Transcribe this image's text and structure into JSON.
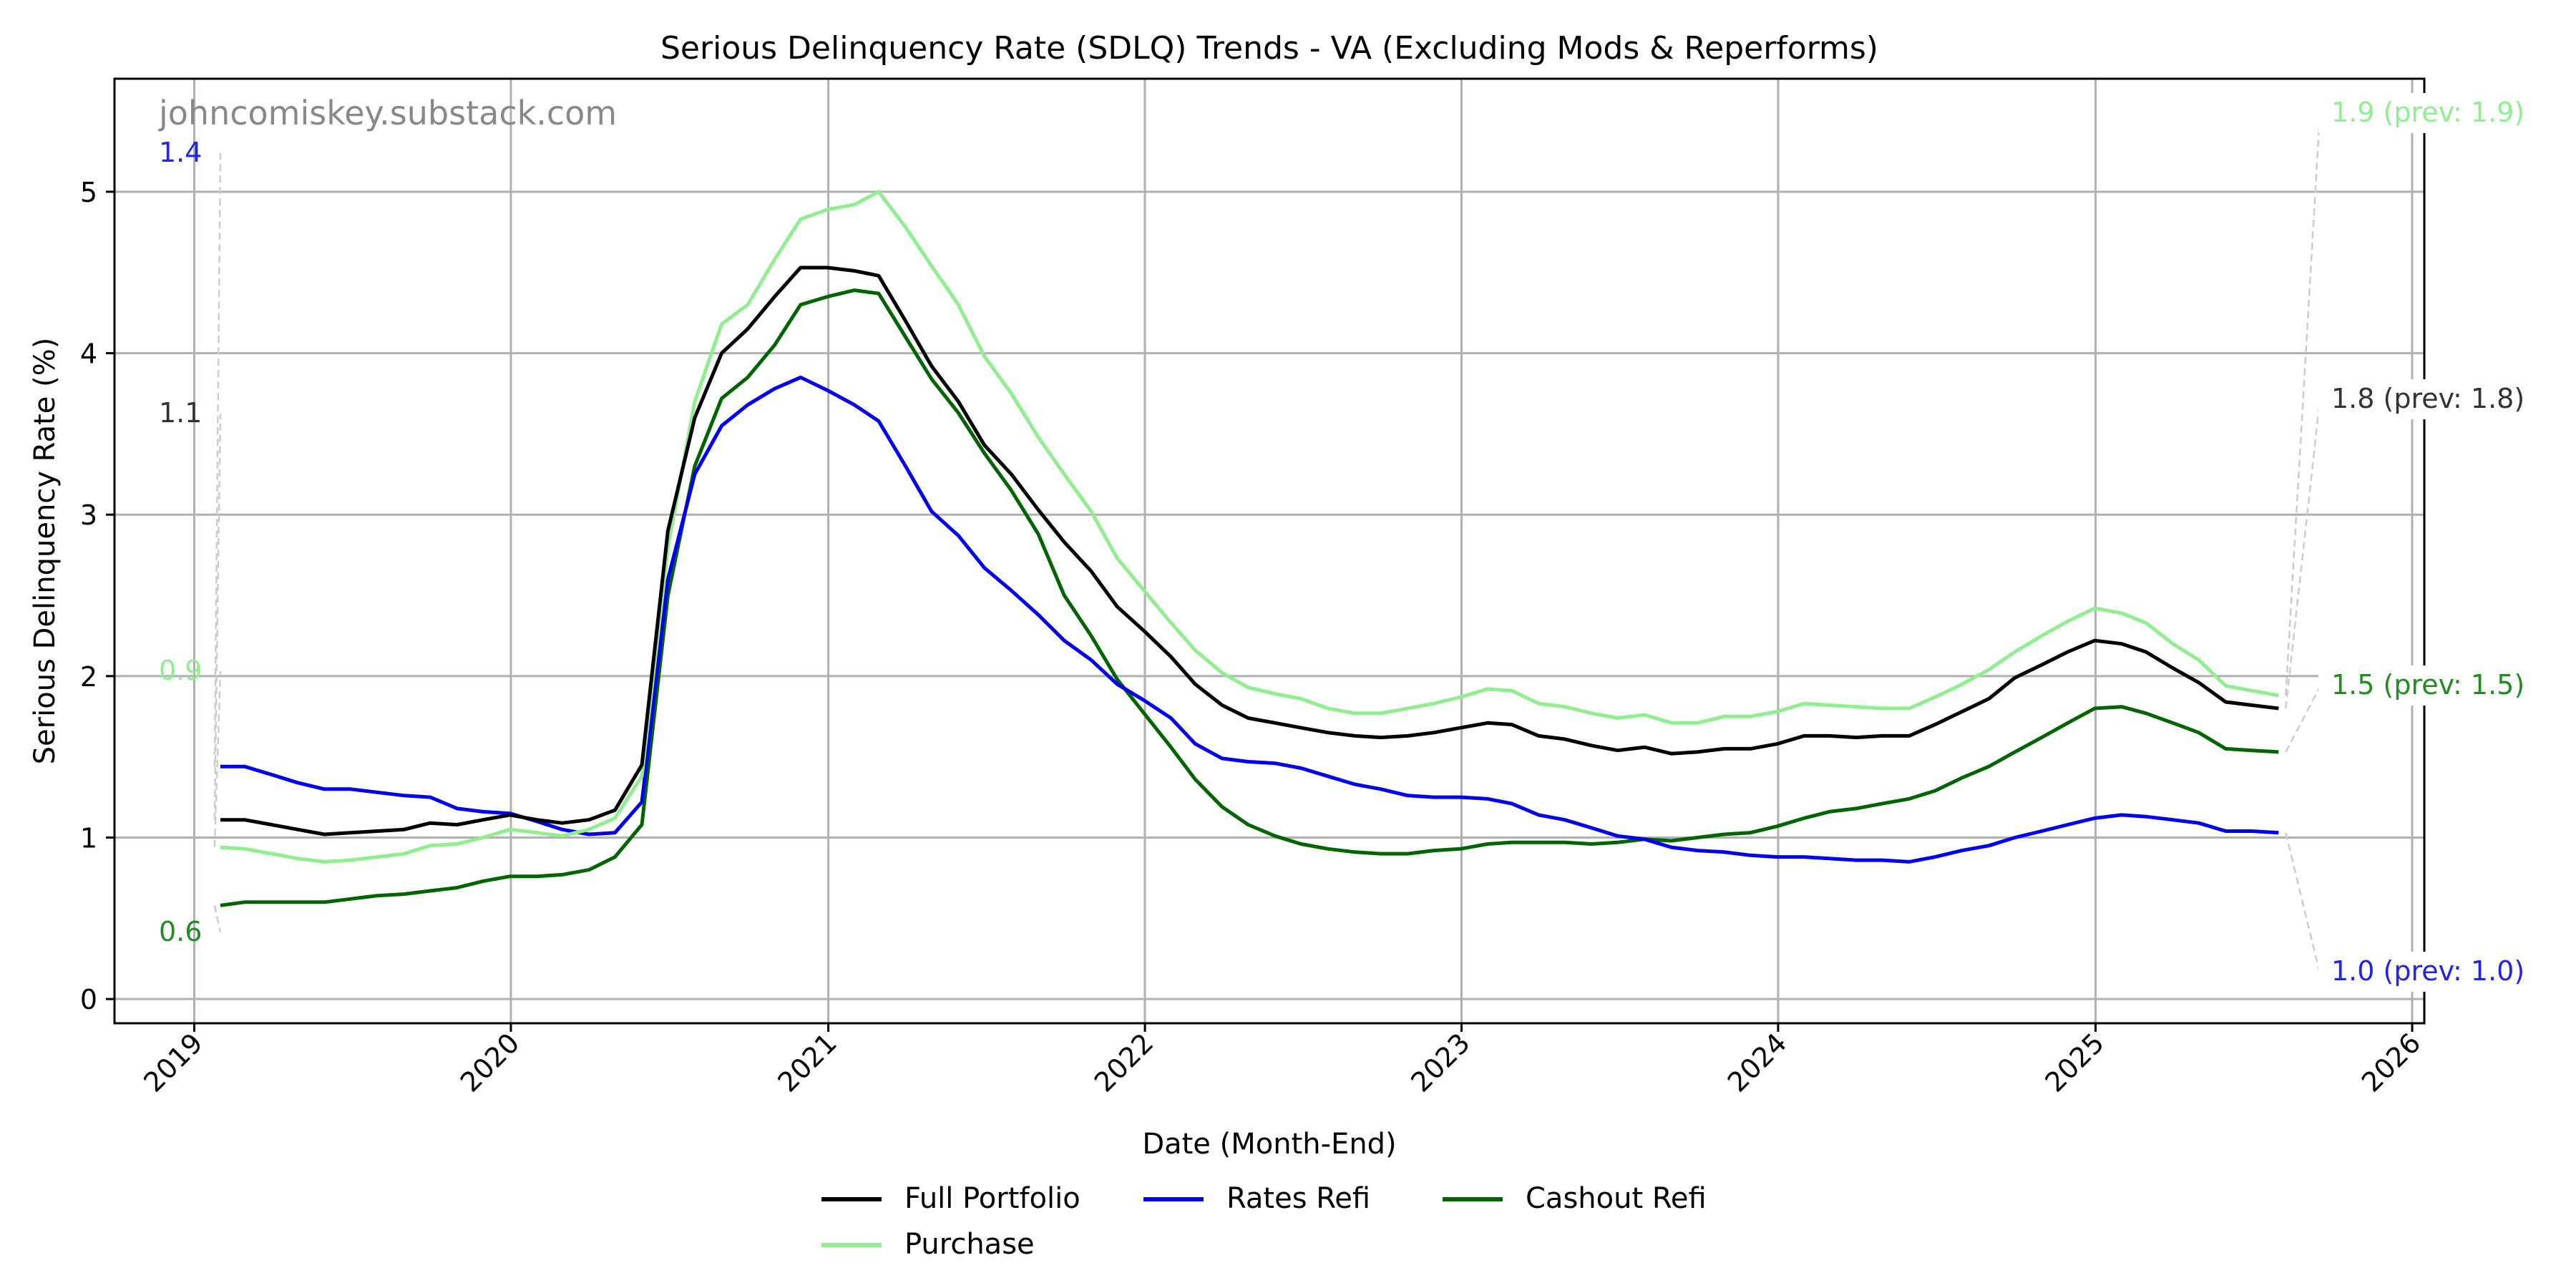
{
  "chart_data": {
    "type": "line",
    "title": "Serious Delinquency Rate (SDLQ) Trends - VA (Excluding Mods & Reperforms)",
    "xlabel": "Date (Month-End)",
    "ylabel": "Serious Delinquency Rate (%)",
    "watermark": "johncomiskey.substack.com",
    "xlim": [
      "2018-10-01",
      "2026-01-15"
    ],
    "ylim": [
      -0.15,
      5.7
    ],
    "x_ticks": [
      "2019",
      "2020",
      "2021",
      "2022",
      "2023",
      "2024",
      "2025",
      "2026"
    ],
    "y_ticks": [
      0,
      1,
      2,
      3,
      4,
      5
    ],
    "grid": true,
    "legend_position": "bottom-center",
    "x_start_month": "2019-01",
    "x_end_month": "2025-08",
    "series": [
      {
        "name": "Full Portfolio",
        "color": "#000000",
        "values": [
          1.11,
          1.11,
          1.08,
          1.05,
          1.02,
          1.03,
          1.04,
          1.05,
          1.09,
          1.08,
          1.11,
          1.14,
          1.11,
          1.09,
          1.11,
          1.17,
          1.45,
          2.9,
          3.6,
          4.0,
          4.15,
          4.35,
          4.53,
          4.53,
          4.51,
          4.48,
          4.2,
          3.92,
          3.7,
          3.43,
          3.25,
          3.03,
          2.83,
          2.65,
          2.43,
          2.28,
          2.12,
          1.95,
          1.82,
          1.74,
          1.71,
          1.68,
          1.65,
          1.63,
          1.62,
          1.63,
          1.65,
          1.68,
          1.71,
          1.7,
          1.63,
          1.61,
          1.57,
          1.54,
          1.56,
          1.52,
          1.53,
          1.55,
          1.55,
          1.58,
          1.63,
          1.63,
          1.62,
          1.63,
          1.63,
          1.7,
          1.78,
          1.86,
          1.99,
          2.07,
          2.15,
          2.22,
          2.2,
          2.15,
          2.05,
          1.96,
          1.84,
          1.82,
          1.8
        ],
        "last_label": "1.8 (prev: 1.8)",
        "first_label": "1.1"
      },
      {
        "name": "Rates Refi",
        "color": "#0000ee",
        "values": [
          1.44,
          1.44,
          1.39,
          1.34,
          1.3,
          1.3,
          1.28,
          1.26,
          1.25,
          1.18,
          1.16,
          1.15,
          1.1,
          1.05,
          1.02,
          1.03,
          1.22,
          2.6,
          3.25,
          3.55,
          3.68,
          3.78,
          3.85,
          3.77,
          3.68,
          3.58,
          3.3,
          3.02,
          2.87,
          2.67,
          2.53,
          2.38,
          2.22,
          2.1,
          1.95,
          1.85,
          1.74,
          1.58,
          1.49,
          1.47,
          1.46,
          1.43,
          1.38,
          1.33,
          1.3,
          1.26,
          1.25,
          1.25,
          1.24,
          1.21,
          1.14,
          1.11,
          1.06,
          1.01,
          0.99,
          0.94,
          0.92,
          0.91,
          0.89,
          0.88,
          0.88,
          0.87,
          0.86,
          0.86,
          0.85,
          0.88,
          0.92,
          0.95,
          1.0,
          1.04,
          1.08,
          1.12,
          1.14,
          1.13,
          1.11,
          1.09,
          1.04,
          1.04,
          1.03
        ],
        "last_label": "1.0 (prev: 1.0)",
        "first_label": "1.4"
      },
      {
        "name": "Cashout Refi",
        "color": "#006400",
        "values": [
          0.58,
          0.6,
          0.6,
          0.6,
          0.6,
          0.62,
          0.64,
          0.65,
          0.67,
          0.69,
          0.73,
          0.76,
          0.76,
          0.77,
          0.8,
          0.88,
          1.08,
          2.5,
          3.3,
          3.72,
          3.85,
          4.05,
          4.3,
          4.35,
          4.39,
          4.37,
          4.1,
          3.84,
          3.63,
          3.38,
          3.15,
          2.88,
          2.5,
          2.25,
          1.98,
          1.77,
          1.56,
          1.36,
          1.19,
          1.08,
          1.01,
          0.96,
          0.93,
          0.91,
          0.9,
          0.9,
          0.92,
          0.93,
          0.96,
          0.97,
          0.97,
          0.97,
          0.96,
          0.97,
          0.99,
          0.98,
          1.0,
          1.02,
          1.03,
          1.07,
          1.12,
          1.16,
          1.18,
          1.21,
          1.24,
          1.29,
          1.37,
          1.44,
          1.53,
          1.62,
          1.71,
          1.8,
          1.81,
          1.77,
          1.71,
          1.65,
          1.55,
          1.54,
          1.53
        ],
        "last_label": "1.5 (prev: 1.5)",
        "first_label": "0.6"
      },
      {
        "name": "Purchase",
        "color": "#90ee90",
        "values": [
          0.94,
          0.93,
          0.9,
          0.87,
          0.85,
          0.86,
          0.88,
          0.9,
          0.95,
          0.96,
          1.0,
          1.05,
          1.03,
          1.01,
          1.05,
          1.12,
          1.38,
          2.8,
          3.7,
          4.18,
          4.3,
          4.58,
          4.83,
          4.89,
          4.92,
          5.0,
          4.78,
          4.54,
          4.3,
          3.98,
          3.75,
          3.48,
          3.25,
          3.02,
          2.73,
          2.53,
          2.33,
          2.16,
          2.02,
          1.93,
          1.89,
          1.86,
          1.8,
          1.77,
          1.77,
          1.8,
          1.83,
          1.87,
          1.92,
          1.91,
          1.83,
          1.81,
          1.77,
          1.74,
          1.76,
          1.71,
          1.71,
          1.75,
          1.75,
          1.78,
          1.83,
          1.82,
          1.81,
          1.8,
          1.8,
          1.87,
          1.95,
          2.04,
          2.15,
          2.25,
          2.34,
          2.42,
          2.39,
          2.33,
          2.2,
          2.1,
          1.94,
          1.91,
          1.88
        ],
        "last_label": "1.9 (prev: 1.9)",
        "first_label": "0.9"
      }
    ],
    "legend": [
      {
        "name": "Full Portfolio",
        "color": "#000000"
      },
      {
        "name": "Rates Refi",
        "color": "#0000ee"
      },
      {
        "name": "Cashout Refi",
        "color": "#006400"
      },
      {
        "name": "Purchase",
        "color": "#90ee90"
      }
    ]
  }
}
